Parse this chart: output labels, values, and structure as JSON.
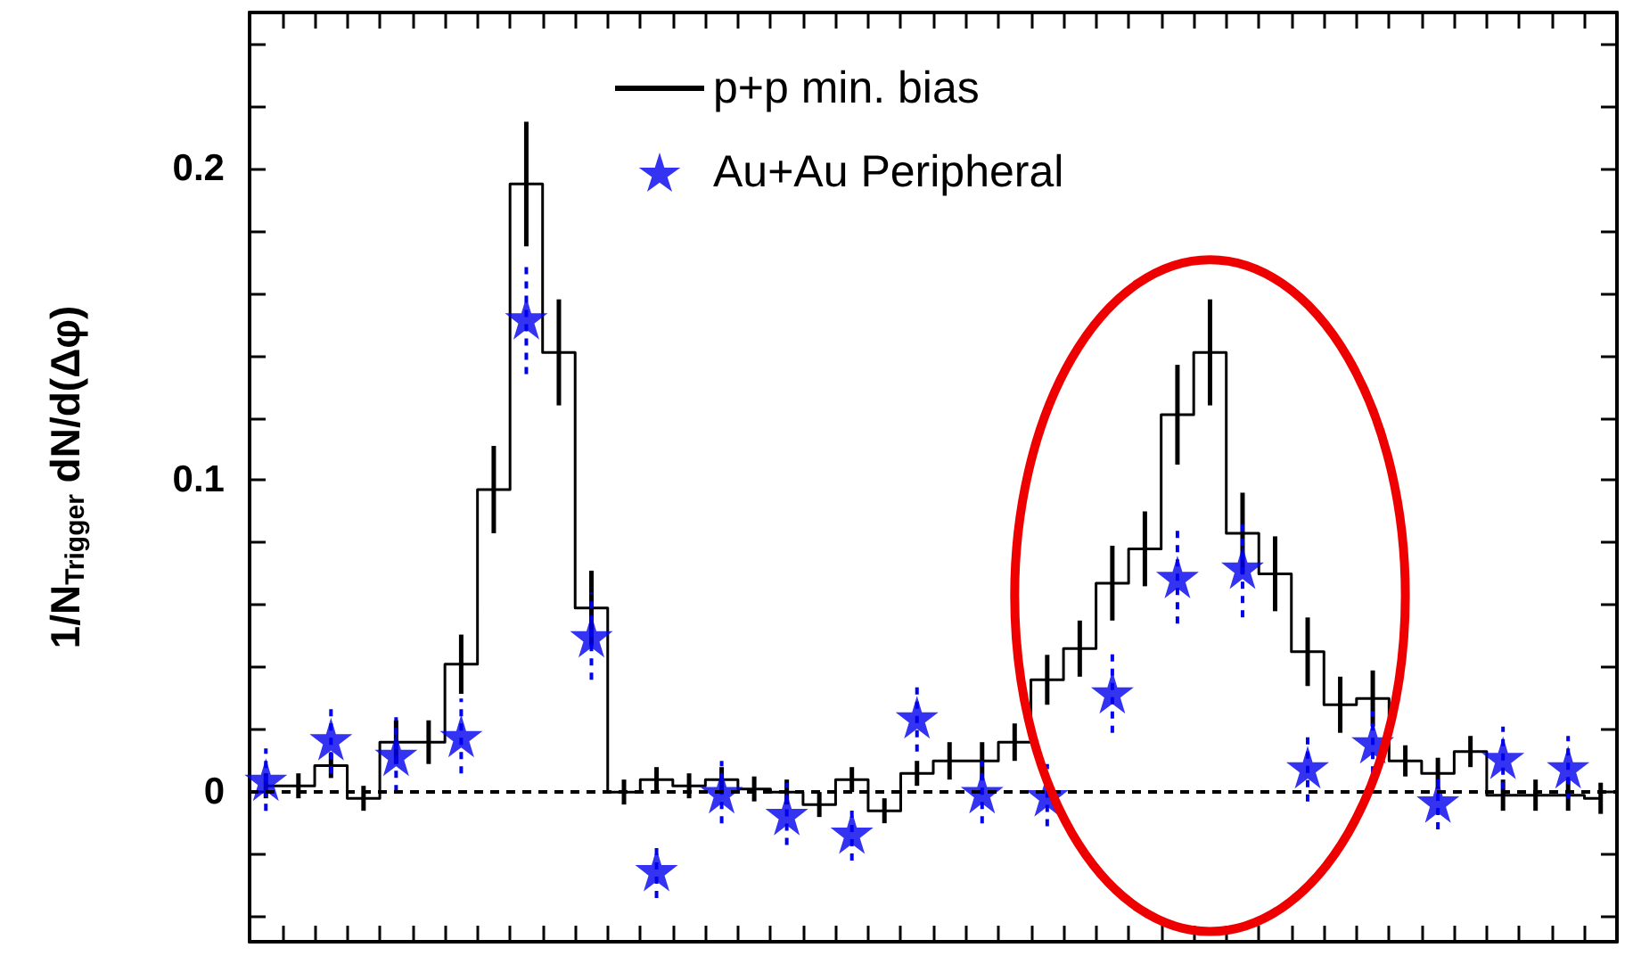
{
  "chart_data": {
    "type": "step",
    "ylabel": "1/N$_{Trigger}$ dN/d(Δφ)",
    "ylim": [
      -0.048,
      0.25
    ],
    "categories": [
      null,
      null,
      null,
      null,
      null,
      null,
      null,
      null,
      null,
      null,
      null,
      null,
      null,
      null,
      null,
      null,
      null,
      null,
      null,
      null,
      null,
      null,
      null,
      null,
      null,
      null,
      null,
      null,
      null,
      null,
      null,
      null,
      null,
      null,
      null,
      null,
      null,
      null,
      null,
      null,
      null,
      null
    ],
    "yticks": [
      {
        "value": -0.04,
        "label": null
      },
      {
        "value": -0.02,
        "label": null
      },
      0,
      {
        "value": 0.02,
        "label": null
      },
      {
        "value": 0.04,
        "label": null
      },
      {
        "value": 0.06,
        "label": null
      },
      {
        "value": 0.08,
        "label": null
      },
      0.1,
      {
        "value": 0.12,
        "label": null
      },
      {
        "value": 0.14,
        "label": null
      },
      {
        "value": 0.16,
        "label": null
      },
      {
        "value": 0.18,
        "label": null
      },
      0.2,
      {
        "value": 0.22,
        "label": null
      },
      {
        "value": 0.24,
        "label": null
      }
    ],
    "legend": "top",
    "series": [
      {
        "name": "p+p min. bias",
        "color": "#000000",
        "marker": "none",
        "values": [
          0.002,
          0.002,
          0.0085,
          -0.002,
          0.016,
          0.016,
          0.041,
          0.097,
          0.195,
          0.141,
          0.059,
          0,
          0.004,
          0.002,
          0.004,
          0.001,
          0,
          -0.004,
          0.004,
          -0.006,
          0.006,
          0.01,
          0.01,
          0.016,
          0.036,
          0.046,
          0.067,
          0.078,
          0.121,
          0.141,
          0.083,
          0.07,
          0.045,
          0.028,
          0.03,
          0.01,
          0.006,
          0.013,
          -0.001,
          -0.001,
          -0.001,
          -0.002
        ],
        "errors": [
          0.004,
          0.004,
          0.004,
          0.004,
          0.007,
          0.007,
          0.0095,
          0.014,
          0.02,
          0.017,
          0.012,
          0.004,
          0.004,
          0.004,
          0.004,
          0.004,
          0.004,
          0.004,
          0.004,
          0.004,
          0.004,
          0.006,
          0.006,
          0.006,
          0.008,
          0.009,
          0.012,
          0.012,
          0.016,
          0.017,
          0.013,
          0.012,
          0.011,
          0.009,
          0.009,
          0.005,
          0.005,
          0.005,
          0.005,
          0.005,
          0.005,
          0.005
        ]
      },
      {
        "name": "Au+Au Peripheral",
        "type": "scatter",
        "color": "#0000ee",
        "marker": "star",
        "values": [
          0.004,
          null,
          0.017,
          null,
          0.012,
          null,
          0.018,
          null,
          0.152,
          null,
          0.05,
          null,
          -0.025,
          null,
          0,
          null,
          -0.007,
          null,
          -0.013,
          null,
          0.024,
          null,
          0,
          null,
          -0.001,
          null,
          0.032,
          null,
          0.069,
          null,
          0.072,
          null,
          0.008,
          null,
          0.016,
          null,
          -0.003,
          null,
          0.011,
          null,
          0.008,
          null
        ],
        "errors": [
          0.01,
          null,
          0.011,
          null,
          0.012,
          null,
          0.012,
          null,
          0.018,
          null,
          0.014,
          null,
          0.009,
          null,
          0.01,
          null,
          0.01,
          null,
          0.009,
          null,
          0.011,
          null,
          0.01,
          null,
          0.01,
          null,
          0.013,
          null,
          0.015,
          null,
          0.016,
          null,
          0.011,
          null,
          0.01,
          null,
          0.009,
          null,
          0.01,
          null,
          0.01,
          null
        ]
      }
    ],
    "ref_lines": [
      {
        "axis": "y",
        "value": 0,
        "color": "#000000",
        "line_style": "dashed"
      }
    ]
  }
}
